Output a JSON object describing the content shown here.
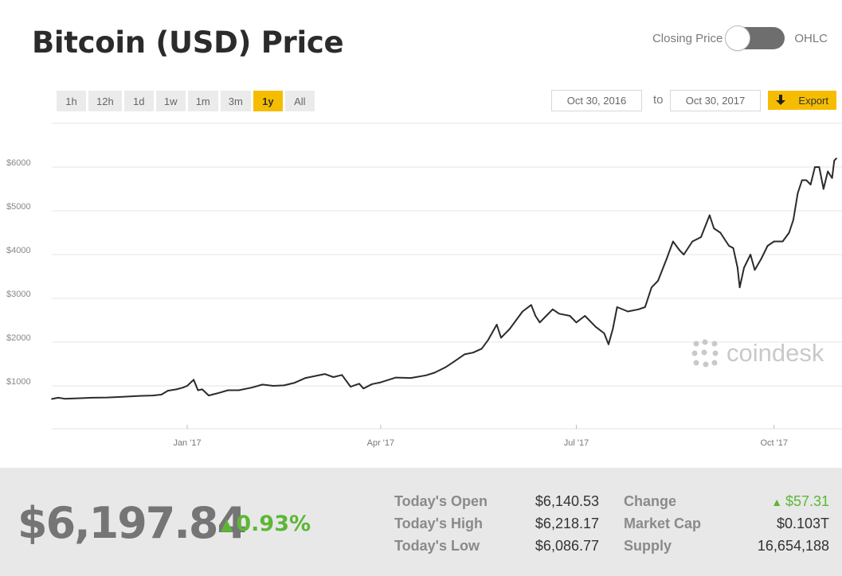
{
  "title": "Bitcoin (USD) Price",
  "toggle": {
    "left_label": "Closing Price",
    "right_label": "OHLC"
  },
  "ranges": [
    "1h",
    "12h",
    "1d",
    "1w",
    "1m",
    "3m",
    "1y",
    "All"
  ],
  "active_range": "1y",
  "date_from": "Oct 30, 2016",
  "date_to_label": "to",
  "date_to": "Oct 30, 2017",
  "export_label": "Export",
  "watermark": "coindesk",
  "colors": {
    "accent": "#f6bd00",
    "line": "#2b2b2b",
    "positive": "#5cb735"
  },
  "stats": {
    "price": "$6,197.84",
    "change_pct": "0.93%",
    "open_label": "Today's Open",
    "open_value": "$6,140.53",
    "high_label": "Today's High",
    "high_value": "$6,218.17",
    "low_label": "Today's Low",
    "low_value": "$6,086.77",
    "change_label": "Change",
    "change_value": "$57.31",
    "mcap_label": "Market Cap",
    "mcap_value": "$0.103T",
    "supply_label": "Supply",
    "supply_value": "16,654,188"
  },
  "chart_data": {
    "type": "line",
    "title": "Bitcoin (USD) Price",
    "xlabel": "",
    "ylabel": "",
    "ylim": [
      0,
      7000
    ],
    "yticks": [
      1000,
      2000,
      3000,
      4000,
      5000,
      6000
    ],
    "ytick_labels": [
      "$1000",
      "$2000",
      "$3000",
      "$4000",
      "$5000",
      "$6000"
    ],
    "xticks": [
      "2017-01-01",
      "2017-04-01",
      "2017-07-01",
      "2017-10-01"
    ],
    "xtick_labels": [
      "Jan '17",
      "Apr '17",
      "Jul '17",
      "Oct '17"
    ],
    "x_range": [
      "2016-10-30",
      "2017-10-30"
    ],
    "grid": true,
    "series": [
      {
        "values": [
          [
            "2016-10-30",
            700
          ],
          [
            "2016-11-02",
            730
          ],
          [
            "2016-11-05",
            705
          ],
          [
            "2016-11-10",
            715
          ],
          [
            "2016-11-18",
            730
          ],
          [
            "2016-11-25",
            735
          ],
          [
            "2016-12-02",
            750
          ],
          [
            "2016-12-10",
            770
          ],
          [
            "2016-12-16",
            780
          ],
          [
            "2016-12-20",
            800
          ],
          [
            "2016-12-23",
            890
          ],
          [
            "2016-12-27",
            920
          ],
          [
            "2016-12-30",
            960
          ],
          [
            "2017-01-01",
            1000
          ],
          [
            "2017-01-04",
            1140
          ],
          [
            "2017-01-06",
            900
          ],
          [
            "2017-01-08",
            920
          ],
          [
            "2017-01-11",
            780
          ],
          [
            "2017-01-15",
            830
          ],
          [
            "2017-01-20",
            900
          ],
          [
            "2017-01-25",
            900
          ],
          [
            "2017-01-31",
            960
          ],
          [
            "2017-02-05",
            1030
          ],
          [
            "2017-02-10",
            1000
          ],
          [
            "2017-02-15",
            1010
          ],
          [
            "2017-02-20",
            1070
          ],
          [
            "2017-02-25",
            1180
          ],
          [
            "2017-03-02",
            1230
          ],
          [
            "2017-03-06",
            1270
          ],
          [
            "2017-03-10",
            1200
          ],
          [
            "2017-03-14",
            1250
          ],
          [
            "2017-03-18",
            980
          ],
          [
            "2017-03-22",
            1050
          ],
          [
            "2017-03-24",
            940
          ],
          [
            "2017-03-28",
            1040
          ],
          [
            "2017-04-01",
            1080
          ],
          [
            "2017-04-08",
            1190
          ],
          [
            "2017-04-15",
            1180
          ],
          [
            "2017-04-22",
            1240
          ],
          [
            "2017-04-26",
            1300
          ],
          [
            "2017-05-01",
            1420
          ],
          [
            "2017-05-05",
            1550
          ],
          [
            "2017-05-10",
            1720
          ],
          [
            "2017-05-14",
            1760
          ],
          [
            "2017-05-18",
            1850
          ],
          [
            "2017-05-21",
            2050
          ],
          [
            "2017-05-25",
            2400
          ],
          [
            "2017-05-27",
            2100
          ],
          [
            "2017-05-31",
            2300
          ],
          [
            "2017-06-06",
            2700
          ],
          [
            "2017-06-10",
            2850
          ],
          [
            "2017-06-12",
            2600
          ],
          [
            "2017-06-14",
            2450
          ],
          [
            "2017-06-17",
            2600
          ],
          [
            "2017-06-20",
            2750
          ],
          [
            "2017-06-23",
            2650
          ],
          [
            "2017-06-28",
            2600
          ],
          [
            "2017-07-01",
            2450
          ],
          [
            "2017-07-05",
            2600
          ],
          [
            "2017-07-10",
            2350
          ],
          [
            "2017-07-14",
            2200
          ],
          [
            "2017-07-16",
            1950
          ],
          [
            "2017-07-18",
            2300
          ],
          [
            "2017-07-20",
            2800
          ],
          [
            "2017-07-25",
            2700
          ],
          [
            "2017-07-30",
            2750
          ],
          [
            "2017-08-02",
            2800
          ],
          [
            "2017-08-05",
            3250
          ],
          [
            "2017-08-08",
            3400
          ],
          [
            "2017-08-12",
            3900
          ],
          [
            "2017-08-15",
            4300
          ],
          [
            "2017-08-18",
            4100
          ],
          [
            "2017-08-20",
            4000
          ],
          [
            "2017-08-24",
            4300
          ],
          [
            "2017-08-28",
            4400
          ],
          [
            "2017-09-01",
            4900
          ],
          [
            "2017-09-03",
            4600
          ],
          [
            "2017-09-06",
            4500
          ],
          [
            "2017-09-10",
            4200
          ],
          [
            "2017-09-12",
            4150
          ],
          [
            "2017-09-14",
            3700
          ],
          [
            "2017-09-15",
            3250
          ],
          [
            "2017-09-17",
            3700
          ],
          [
            "2017-09-20",
            4000
          ],
          [
            "2017-09-22",
            3650
          ],
          [
            "2017-09-25",
            3900
          ],
          [
            "2017-09-28",
            4200
          ],
          [
            "2017-10-01",
            4300
          ],
          [
            "2017-10-05",
            4300
          ],
          [
            "2017-10-08",
            4500
          ],
          [
            "2017-10-10",
            4800
          ],
          [
            "2017-10-12",
            5400
          ],
          [
            "2017-10-14",
            5700
          ],
          [
            "2017-10-16",
            5700
          ],
          [
            "2017-10-18",
            5600
          ],
          [
            "2017-10-20",
            6000
          ],
          [
            "2017-10-22",
            6000
          ],
          [
            "2017-10-24",
            5500
          ],
          [
            "2017-10-26",
            5900
          ],
          [
            "2017-10-28",
            5750
          ],
          [
            "2017-10-29",
            6150
          ],
          [
            "2017-10-30",
            6198
          ]
        ]
      }
    ]
  }
}
